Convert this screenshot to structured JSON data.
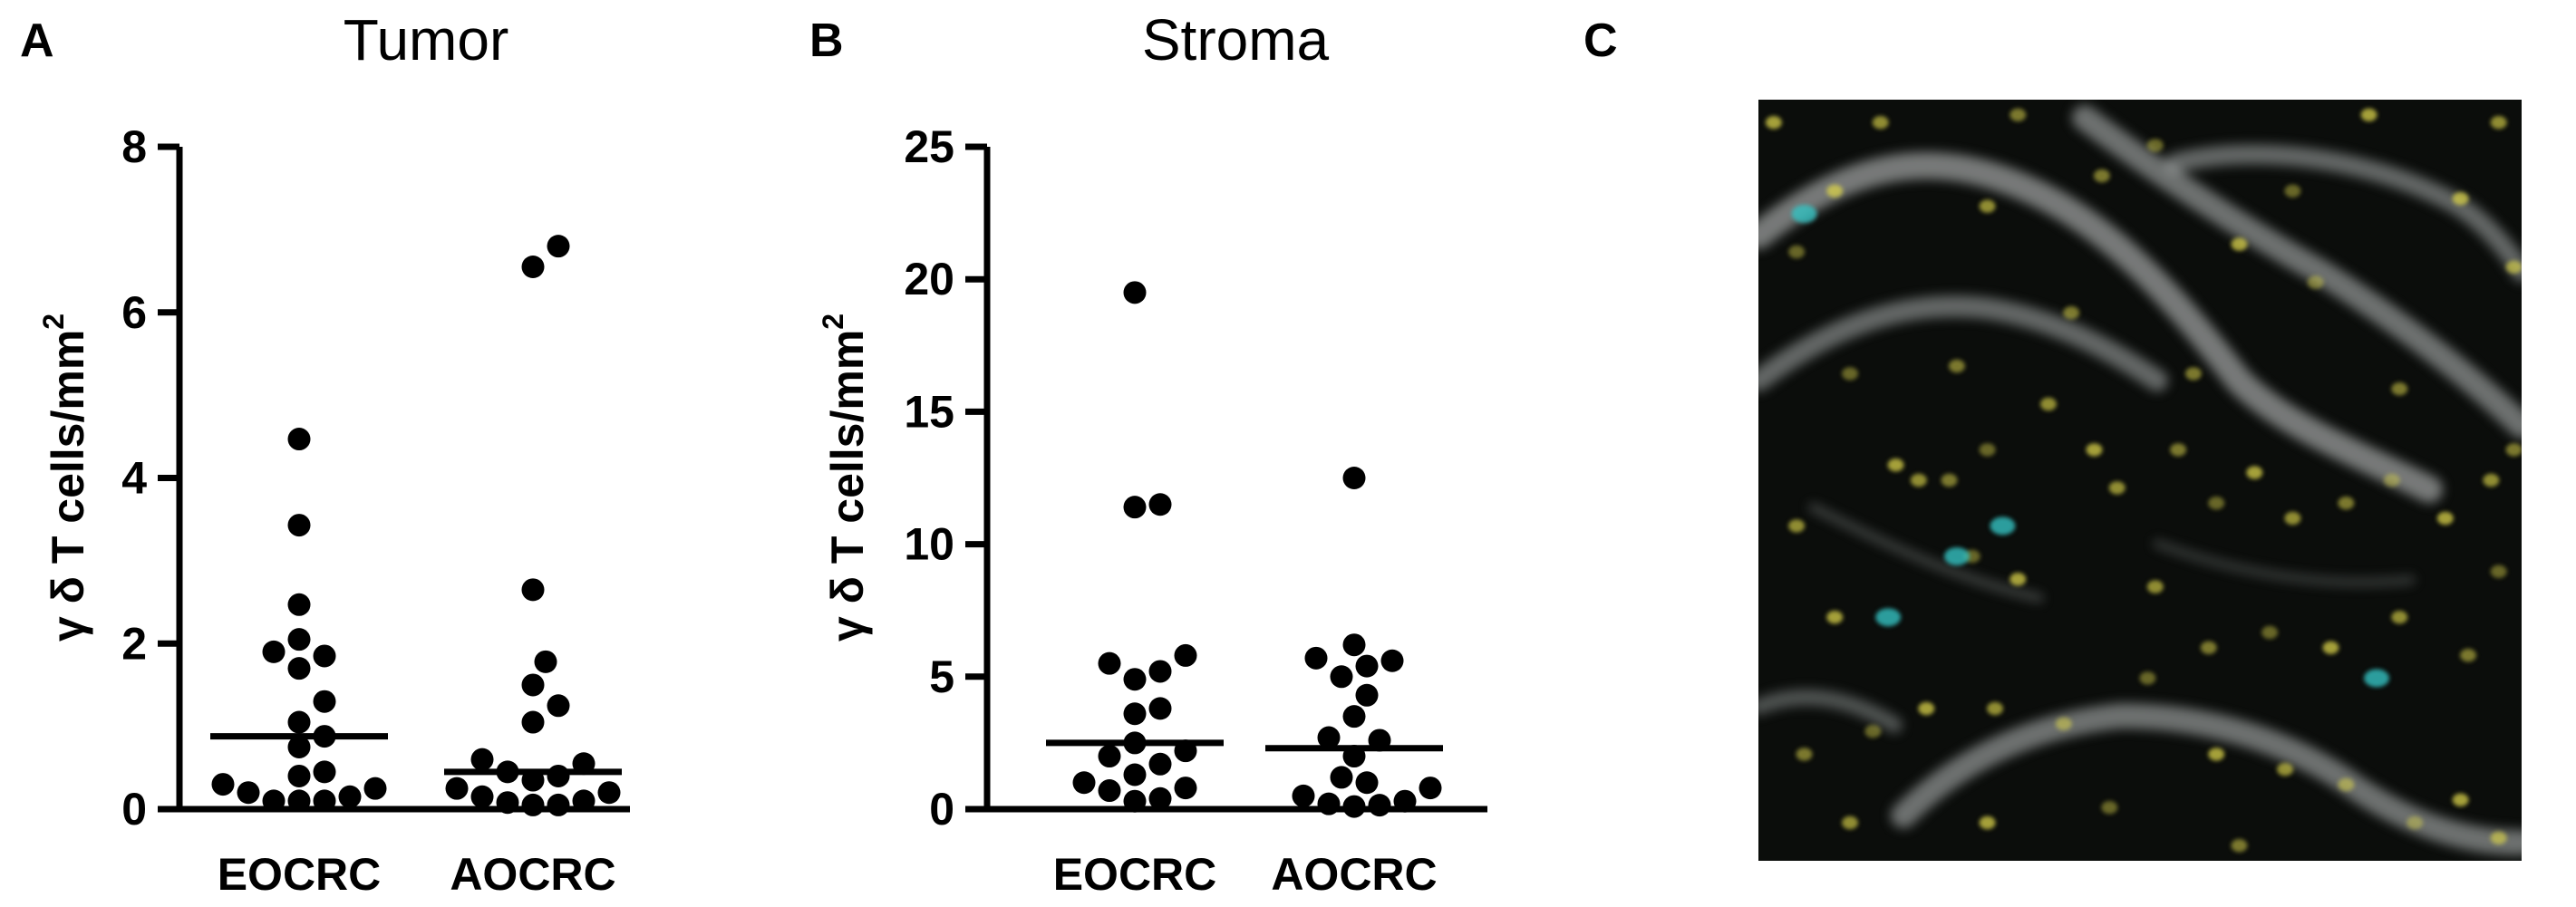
{
  "panels": {
    "a": {
      "letter": "A"
    },
    "b": {
      "letter": "B"
    },
    "c": {
      "letter": "C"
    }
  },
  "colors": {
    "micrograph_background": "#0b0d0b",
    "epithelium": "#cfd3d3",
    "cd3_yellow": "#d9d24a",
    "tcr_cyan": "#35c2c2"
  },
  "chart_data": [
    {
      "type": "scatter",
      "title": "Tumor",
      "xlabel": "",
      "ylabel": "γ δ T cells/mm",
      "ylabel_superscript": "2",
      "categories": [
        "EOCRC",
        "AOCRC"
      ],
      "ylim": [
        0,
        8
      ],
      "yticks": [
        0,
        2,
        4,
        6,
        8
      ],
      "grid": false,
      "legend": "none",
      "series": [
        {
          "category": "EOCRC",
          "mean": 0.88,
          "values": [
            4.47,
            3.43,
            2.47,
            2.05,
            1.9,
            1.85,
            1.7,
            1.3,
            1.05,
            0.88,
            0.75,
            0.45,
            0.4,
            0.3,
            0.25,
            0.2,
            0.15,
            0.1,
            0.1,
            0.1
          ]
        },
        {
          "category": "AOCRC",
          "mean": 0.45,
          "values": [
            6.8,
            6.55,
            2.65,
            1.78,
            1.5,
            1.25,
            1.05,
            0.6,
            0.55,
            0.45,
            0.4,
            0.35,
            0.25,
            0.2,
            0.15,
            0.1,
            0.08,
            0.05,
            0.05
          ]
        }
      ]
    },
    {
      "type": "scatter",
      "title": "Stroma",
      "xlabel": "",
      "ylabel": "γ δ T cells/mm",
      "ylabel_superscript": "2",
      "categories": [
        "EOCRC",
        "AOCRC"
      ],
      "ylim": [
        0,
        25
      ],
      "yticks": [
        0,
        5,
        10,
        15,
        20,
        25
      ],
      "grid": false,
      "legend": "none",
      "series": [
        {
          "category": "EOCRC",
          "mean": 2.5,
          "values": [
            19.5,
            11.5,
            11.4,
            5.8,
            5.5,
            5.2,
            4.9,
            3.8,
            3.6,
            2.5,
            2.2,
            2.0,
            1.7,
            1.3,
            1.0,
            0.8,
            0.7,
            0.4,
            0.3
          ]
        },
        {
          "category": "AOCRC",
          "mean": 2.3,
          "values": [
            12.5,
            6.2,
            5.7,
            5.6,
            5.4,
            5.0,
            4.3,
            3.5,
            2.7,
            2.6,
            2.0,
            1.2,
            1.0,
            0.8,
            0.5,
            0.3,
            0.2,
            0.15,
            0.1
          ]
        }
      ]
    }
  ],
  "micrograph": {
    "cells_yellow": [
      [
        0.02,
        0.03
      ],
      [
        0.16,
        0.03
      ],
      [
        0.34,
        0.02
      ],
      [
        0.52,
        0.06
      ],
      [
        0.8,
        0.02
      ],
      [
        0.97,
        0.03
      ],
      [
        0.45,
        0.1
      ],
      [
        0.7,
        0.12
      ],
      [
        0.92,
        0.13
      ],
      [
        0.99,
        0.22
      ],
      [
        0.41,
        0.28
      ],
      [
        0.73,
        0.24
      ],
      [
        0.63,
        0.19
      ],
      [
        0.38,
        0.4
      ],
      [
        0.26,
        0.35
      ],
      [
        0.12,
        0.36
      ],
      [
        0.18,
        0.48
      ],
      [
        0.21,
        0.5
      ],
      [
        0.25,
        0.5
      ],
      [
        0.3,
        0.46
      ],
      [
        0.44,
        0.46
      ],
      [
        0.47,
        0.51
      ],
      [
        0.55,
        0.46
      ],
      [
        0.6,
        0.53
      ],
      [
        0.65,
        0.49
      ],
      [
        0.7,
        0.55
      ],
      [
        0.77,
        0.53
      ],
      [
        0.83,
        0.5
      ],
      [
        0.9,
        0.55
      ],
      [
        0.96,
        0.5
      ],
      [
        0.99,
        0.46
      ],
      [
        0.28,
        0.6
      ],
      [
        0.34,
        0.63
      ],
      [
        0.52,
        0.64
      ],
      [
        0.59,
        0.72
      ],
      [
        0.67,
        0.7
      ],
      [
        0.75,
        0.72
      ],
      [
        0.84,
        0.68
      ],
      [
        0.93,
        0.73
      ],
      [
        0.97,
        0.62
      ],
      [
        0.1,
        0.68
      ],
      [
        0.05,
        0.56
      ],
      [
        0.06,
        0.86
      ],
      [
        0.15,
        0.83
      ],
      [
        0.22,
        0.8
      ],
      [
        0.31,
        0.8
      ],
      [
        0.4,
        0.82
      ],
      [
        0.51,
        0.76
      ],
      [
        0.6,
        0.86
      ],
      [
        0.69,
        0.88
      ],
      [
        0.77,
        0.9
      ],
      [
        0.86,
        0.95
      ],
      [
        0.92,
        0.92
      ],
      [
        0.97,
        0.97
      ],
      [
        0.63,
        0.98
      ],
      [
        0.46,
        0.93
      ],
      [
        0.3,
        0.95
      ],
      [
        0.12,
        0.95
      ],
      [
        0.57,
        0.36
      ],
      [
        0.05,
        0.2
      ],
      [
        0.1,
        0.12
      ],
      [
        0.3,
        0.14
      ],
      [
        0.84,
        0.38
      ]
    ],
    "cells_cyan": [
      [
        0.06,
        0.15
      ],
      [
        0.32,
        0.56
      ],
      [
        0.26,
        0.6
      ],
      [
        0.17,
        0.68
      ],
      [
        0.81,
        0.76
      ]
    ]
  }
}
